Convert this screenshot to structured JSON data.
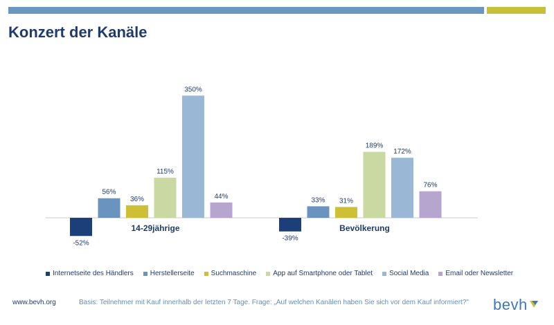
{
  "title": "Konzert der Kanäle",
  "colors": {
    "accent_blue": "#6b96c0",
    "accent_yellow": "#c9c03a",
    "title": "#1f3b6e"
  },
  "chart_data": {
    "type": "bar",
    "categories": [
      "14-29jährige",
      "Bevölkerung"
    ],
    "series": [
      {
        "name": "Internetseite des Händlers",
        "color": "#1c3f7a",
        "values": [
          -52,
          -39
        ],
        "labels": [
          "-52%",
          "-39%"
        ]
      },
      {
        "name": "Herstellerseite",
        "color": "#6a93bf",
        "values": [
          56,
          33
        ],
        "labels": [
          "56%",
          "33%"
        ]
      },
      {
        "name": "Suchmaschine",
        "color": "#cdbf36",
        "values": [
          36,
          31
        ],
        "labels": [
          "36%",
          "31%"
        ]
      },
      {
        "name": "App auf Smartphone oder Tablet",
        "color": "#c9d9a1",
        "values": [
          115,
          189
        ],
        "labels": [
          "115%",
          "189%"
        ]
      },
      {
        "name": "Social Media",
        "color": "#9ab8d6",
        "values": [
          350,
          172
        ],
        "labels": [
          "350%",
          "172%"
        ]
      },
      {
        "name": "Email oder Newsletter",
        "color": "#b6a5ce",
        "values": [
          44,
          76
        ],
        "labels": [
          "44%",
          "76%"
        ]
      }
    ],
    "ylim": [
      -60,
      360
    ],
    "grid": false,
    "legend_position": "bottom"
  },
  "footer": {
    "website": "www.bevh.org",
    "basis": "Basis: Teilnehmer mit Kauf innerhalb der letzten 7 Tage. Frage: „Auf welchen Kanälen haben Sie sich vor dem Kauf informiert?\""
  },
  "logo": {
    "text": "bevh",
    "icon": "bevh-logo-icon"
  }
}
